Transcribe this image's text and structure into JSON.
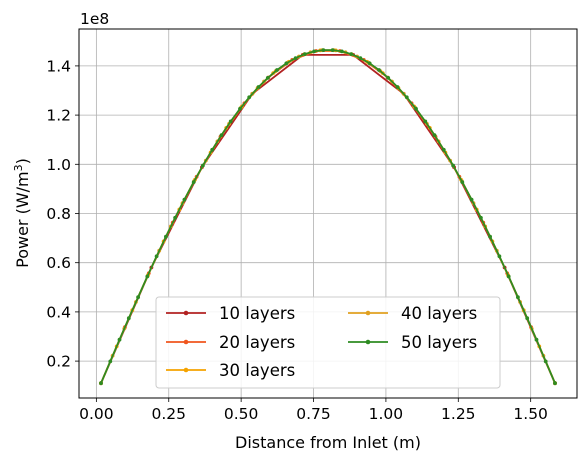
{
  "chart_data": {
    "type": "line",
    "title": "",
    "xlabel": "Distance from Inlet (m)",
    "ylabel_main": "Power (W/m",
    "ylabel_sup": "3",
    "ylabel_close": ")",
    "offset_text": "1e8",
    "offset_factor": 100000000,
    "xlim": [
      -0.06,
      1.66
    ],
    "ylim": [
      5000000,
      155000000
    ],
    "xticks": [
      0.0,
      0.25,
      0.5,
      0.75,
      1.0,
      1.25,
      1.5
    ],
    "xtick_labels": [
      "0.00",
      "0.25",
      "0.50",
      "0.75",
      "1.00",
      "1.25",
      "1.50"
    ],
    "yticks": [
      20000000,
      40000000,
      60000000,
      80000000,
      100000000,
      120000000,
      140000000
    ],
    "ytick_labels": [
      "0.2",
      "0.4",
      "0.6",
      "0.8",
      "1.0",
      "1.2",
      "1.4"
    ],
    "grid": true,
    "legend_location": "lower center",
    "legend_columns": 2,
    "profile": {
      "x_start": 0.016,
      "x_end": 1.584,
      "peak_x": 0.8,
      "peak_value": 146500000,
      "end_value": 11000000
    },
    "series": [
      {
        "name": "10 layers",
        "color": "#b22222",
        "points": 10
      },
      {
        "name": "20 layers",
        "color": "#f0561e",
        "points": 20
      },
      {
        "name": "30 layers",
        "color": "#f5a300",
        "points": 30
      },
      {
        "name": "40 layers",
        "color": "#e0a020",
        "points": 40
      },
      {
        "name": "50 layers",
        "color": "#2e8b22",
        "points": 50
      }
    ]
  }
}
